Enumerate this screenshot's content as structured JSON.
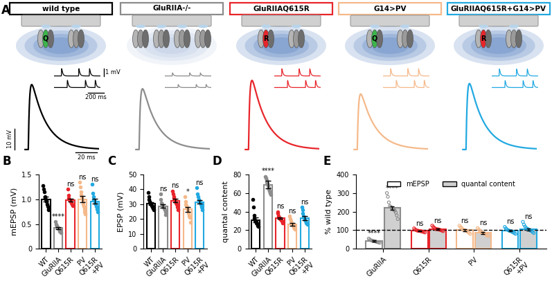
{
  "diagram": {
    "panel": "A",
    "genotypes": [
      {
        "title": "wild type",
        "color": "#000000",
        "subunit": "Q",
        "subunit_color": "#3cb44b",
        "epsp_mV": 31,
        "mepsp_mV": 1.0
      },
      {
        "title": "GluRIIA-/-",
        "color": "#8c8c8c",
        "subunit": null,
        "subunit_color": null,
        "epsp_mV": 29,
        "mepsp_mV": 0.42
      },
      {
        "title": "GluRIIAQ615R",
        "color": "#e8252b",
        "subunit": "R",
        "subunit_color": "#e8252b",
        "epsp_mV": 33,
        "mepsp_mV": 0.98
      },
      {
        "title": "G14>PV",
        "color": "#f5b98a",
        "subunit": "Q",
        "subunit_color": "#3cb44b",
        "epsp_mV": 26.5,
        "mepsp_mV": 1.0
      },
      {
        "title": "GluRIIAQ615R+G14>PV",
        "color": "#22a9e1",
        "subunit": "R",
        "subunit_color": "#e8252b",
        "epsp_mV": 31.5,
        "mepsp_mV": 0.96
      }
    ],
    "scale_bars": {
      "epsp": [
        {
          "value": 10,
          "label": "10 mV"
        },
        {
          "value": 20,
          "label": "20 ms"
        }
      ],
      "minis": [
        {
          "value": 1,
          "label": "1 mV"
        },
        {
          "value": 200,
          "label": "200 ms"
        }
      ]
    },
    "mini_times_ms": [
      [
        90,
        300,
        430
      ],
      [
        160,
        380,
        500
      ]
    ]
  },
  "chart_data": [
    {
      "type": "bar",
      "panel": "B",
      "y_label": "mEPSP (mV)",
      "categories": [
        "WT",
        "GluRIIA",
        "Q615R",
        "PV",
        "Q615R\n+PV"
      ],
      "colors": [
        "#000000",
        "#8c8c8c",
        "#e8252b",
        "#f5b98a",
        "#22a9e1"
      ],
      "values": [
        1.0,
        0.42,
        0.98,
        1.0,
        0.96
      ],
      "errors": [
        0.05,
        0.02,
        0.03,
        0.06,
        0.05
      ],
      "points": [
        [
          1.27,
          1.2,
          1.15,
          1.05,
          1.02,
          1.0,
          0.98,
          0.95,
          0.9,
          0.85,
          0.8,
          0.78
        ],
        [
          0.55,
          0.5,
          0.47,
          0.45,
          0.43,
          0.42,
          0.4,
          0.38,
          0.36,
          0.35,
          0.33
        ],
        [
          1.2,
          1.08,
          1.02,
          1.0,
          0.98,
          0.97,
          0.95,
          0.93,
          0.9,
          0.88,
          0.87
        ],
        [
          1.35,
          1.25,
          1.15,
          1.1,
          1.05,
          1.0,
          0.95,
          0.9,
          0.85,
          0.8,
          0.75,
          0.7
        ],
        [
          1.3,
          1.12,
          1.05,
          1.0,
          0.98,
          0.95,
          0.92,
          0.9,
          0.85,
          0.8,
          0.75
        ]
      ],
      "significance": [
        null,
        "****",
        "ns",
        "ns",
        "ns"
      ],
      "ylim": [
        0,
        1.5
      ],
      "yticks": [
        0,
        0.5,
        {
          "value": 1,
          "label": "1.0"
        },
        1.5
      ]
    },
    {
      "type": "bar",
      "panel": "C",
      "y_label": "EPSP (mV)",
      "categories": [
        "WT",
        "GluRIIA",
        "Q615R",
        "PV",
        "Q615R\n+PV"
      ],
      "colors": [
        "#000000",
        "#8c8c8c",
        "#e8252b",
        "#f5b98a",
        "#22a9e1"
      ],
      "values": [
        30.5,
        28.7,
        32.5,
        26.5,
        31.5
      ],
      "errors": [
        1.0,
        1.2,
        1.0,
        1.5,
        1.2
      ],
      "points": [
        [
          38,
          35,
          33,
          32,
          31,
          30.5,
          30,
          29,
          28.5,
          28,
          27,
          26
        ],
        [
          37,
          33,
          31,
          30,
          29,
          28.5,
          28,
          27,
          26,
          25,
          23
        ],
        [
          39,
          37,
          35,
          34,
          33,
          32.5,
          32,
          31,
          30,
          29.5,
          28,
          26
        ],
        [
          35,
          32,
          30,
          29,
          28,
          27,
          26,
          25,
          24,
          22,
          21,
          18
        ],
        [
          41,
          37,
          35,
          33,
          32,
          31.5,
          31,
          30,
          29,
          28,
          26
        ]
      ],
      "significance": [
        null,
        "ns",
        "ns",
        "*",
        "ns"
      ],
      "ylim": [
        0,
        50
      ],
      "yticks": [
        0,
        10,
        20,
        30,
        40,
        50
      ]
    },
    {
      "type": "bar",
      "panel": "D",
      "y_label": "quantal content",
      "categories": [
        "WT",
        "GluRIIA",
        "Q615R",
        "PV",
        "Q615R\n+PV"
      ],
      "colors": [
        "#000000",
        "#8c8c8c",
        "#e8252b",
        "#f5b98a",
        "#22a9e1"
      ],
      "values": [
        31,
        69,
        33,
        26.5,
        33
      ],
      "errors": [
        2.5,
        4,
        1,
        1.5,
        2
      ],
      "points": [
        [
          53,
          45,
          36,
          33,
          31,
          30,
          29,
          28,
          27,
          26,
          25,
          24
        ],
        [
          78,
          76,
          74,
          72,
          70,
          68,
          66,
          64,
          62,
          60,
          58
        ],
        [
          40,
          38,
          35,
          34,
          33,
          32.5,
          32,
          31,
          30,
          29,
          28
        ],
        [
          35,
          32,
          30,
          28,
          27,
          26,
          25,
          24,
          23,
          22,
          21
        ],
        [
          45,
          42,
          38,
          35,
          33,
          32,
          31,
          30,
          28,
          27,
          26
        ]
      ],
      "significance": [
        null,
        "****",
        "ns",
        "ns",
        "ns"
      ],
      "ylim": [
        0,
        80
      ],
      "yticks": [
        0,
        20,
        40,
        60,
        80
      ]
    },
    {
      "type": "bar",
      "panel": "E",
      "y_label": "% wild type",
      "categories": [
        "GluRIIA",
        "Q615R",
        "PV",
        "Q615R\n+PV"
      ],
      "colors": [
        "#8c8c8c",
        "#e8252b",
        "#f5b98a",
        "#22a9e1"
      ],
      "series": [
        {
          "name": "mEPSP",
          "color": "#ffffff",
          "values": [
            42,
            97,
            100,
            97
          ],
          "errors": [
            2,
            2,
            4,
            4
          ],
          "points": [
            [
              55,
              50,
              46,
              44,
              42,
              41,
              40,
              38,
              36,
              35,
              32
            ],
            [
              110,
              104,
              100,
              98,
              97,
              96,
              95,
              94,
              92,
              90,
              88
            ],
            [
              125,
              118,
              112,
              105,
              102,
              100,
              98,
              95,
              90,
              85,
              80
            ],
            [
              118,
              110,
              104,
              100,
              98,
              96,
              94,
              90,
              87,
              84,
              80
            ]
          ],
          "significance": [
            "****",
            "ns",
            "ns",
            "ns"
          ]
        },
        {
          "name": "quantal content",
          "color": "#d0d0d0",
          "values": [
            220,
            106,
            85,
            105
          ],
          "errors": [
            10,
            3,
            5,
            6
          ],
          "points": [
            [
              300,
              280,
              250,
              230,
              225,
              220,
              215,
              210,
              205,
              195,
              180,
              160
            ],
            [
              125,
              118,
              112,
              108,
              106,
              105,
              104,
              102,
              100,
              98,
              95
            ],
            [
              112,
              105,
              98,
              92,
              88,
              85,
              82,
              80,
              76,
              72,
              68
            ],
            [
              145,
              130,
              120,
              112,
              108,
              105,
              102,
              98,
              95,
              90,
              85
            ]
          ],
          "significance": [
            "****",
            "ns",
            "ns",
            "ns"
          ]
        }
      ],
      "reference_line": 100,
      "legend": "upper center",
      "ylim": [
        0,
        400
      ],
      "yticks": [
        0,
        100,
        200,
        300,
        400
      ]
    }
  ]
}
